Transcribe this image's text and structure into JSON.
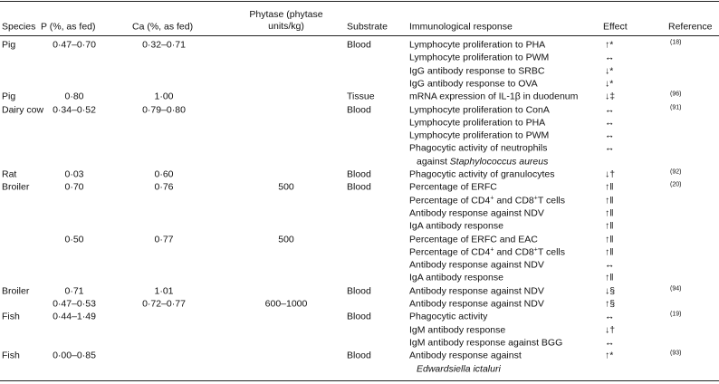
{
  "table": {
    "header": [
      "Species",
      "P (%, as fed)",
      "Ca (%, as fed)",
      "Phytase (phytase units/kg)",
      "Substrate",
      "Immunological response",
      "Effect",
      "Reference"
    ],
    "rows": [
      [
        "Pig",
        "0·47–0·70",
        "0·32–0·71",
        null,
        "Blood",
        "Lymphocyte proliferation to PHA",
        "↑*",
        "(18)"
      ],
      [
        null,
        null,
        null,
        null,
        null,
        "Lymphocyte proliferation to PWM",
        "↔",
        null
      ],
      [
        null,
        null,
        null,
        null,
        null,
        "IgG antibody response to SRBC",
        "↓*",
        null
      ],
      [
        null,
        null,
        null,
        null,
        null,
        "IgG antibody response to OVA",
        "↓*",
        null
      ],
      [
        "Pig",
        "0·80",
        "1·00",
        null,
        "Tissue",
        "mRNA expression of IL-1β in duodenum",
        "↓‡",
        "(96)"
      ],
      [
        "Dairy cow",
        "0·34–0·52",
        "0·79–0·80",
        null,
        "Blood",
        "Lymphocyte proliferation to ConA",
        "↔",
        "(91)"
      ],
      [
        null,
        null,
        null,
        null,
        null,
        "Lymphocyte proliferation to PHA",
        "↔",
        null
      ],
      [
        null,
        null,
        null,
        null,
        null,
        "Lymphocyte proliferation to PWM",
        "↔",
        null
      ],
      [
        null,
        null,
        null,
        null,
        null,
        [
          {
            "text": "Phagocytic activity of neutrophils"
          },
          {
            "text": "against ",
            "line": 2
          },
          {
            "text": "Staphylococcus aureus",
            "style": "italic"
          }
        ],
        "↔",
        null
      ],
      [
        "Rat",
        "0·03",
        "0·60",
        null,
        "Blood",
        "Phagocytic activity of granulocytes",
        "↓†",
        "(92)"
      ],
      [
        "Broiler",
        "0·70",
        "0·76",
        "500",
        "Blood",
        "Percentage of ERFC",
        "↑‖",
        "(20)"
      ],
      [
        null,
        null,
        null,
        null,
        null,
        [
          {
            "text": "Percentage of CD4"
          },
          {
            "text": "+",
            "style": "sup"
          },
          {
            "text": " and CD8"
          },
          {
            "text": "+",
            "style": "sup"
          },
          {
            "text": "T cells"
          }
        ],
        "↑‖",
        null
      ],
      [
        null,
        null,
        null,
        null,
        null,
        "Antibody response against NDV",
        "↑‖",
        null
      ],
      [
        null,
        null,
        null,
        null,
        null,
        "IgA antibody response",
        "↑‖",
        null
      ],
      [
        null,
        "0·50",
        "0·77",
        "500",
        null,
        "Percentage of ERFC and EAC",
        "↑‖",
        null
      ],
      [
        null,
        null,
        null,
        null,
        null,
        [
          {
            "text": "Percentage of CD4"
          },
          {
            "text": "+",
            "style": "sup"
          },
          {
            "text": " and CD8"
          },
          {
            "text": "+",
            "style": "sup"
          },
          {
            "text": "T cells"
          }
        ],
        "↑‖",
        null
      ],
      [
        null,
        null,
        null,
        null,
        null,
        "Antibody response against NDV",
        "↔",
        null
      ],
      [
        null,
        null,
        null,
        null,
        null,
        "IgA antibody response",
        "↑‖",
        null
      ],
      [
        "Broiler",
        "0·71",
        "1·01",
        null,
        "Blood",
        "Antibody response against NDV",
        "↓§",
        "(94)"
      ],
      [
        null,
        "0·47–0·53",
        "0·72–0·77",
        "600–1000",
        null,
        "Antibody response against NDV",
        "↑§",
        null
      ],
      [
        "Fish",
        "0·44–1·49",
        null,
        null,
        "Blood",
        "Phagocytic activity",
        "↔",
        "(19)"
      ],
      [
        null,
        null,
        null,
        null,
        null,
        "IgM antibody response",
        "↓†",
        null
      ],
      [
        null,
        null,
        null,
        null,
        null,
        "IgM antibody response against BGG",
        "↔",
        null
      ],
      [
        "Fish",
        "0·00–0·85",
        null,
        null,
        "Blood",
        [
          {
            "text": "Antibody response against"
          },
          {
            "text": "Edwardsiella ictaluri",
            "style": "italic",
            "line": 2
          }
        ],
        "↑*",
        "(93)"
      ]
    ]
  }
}
